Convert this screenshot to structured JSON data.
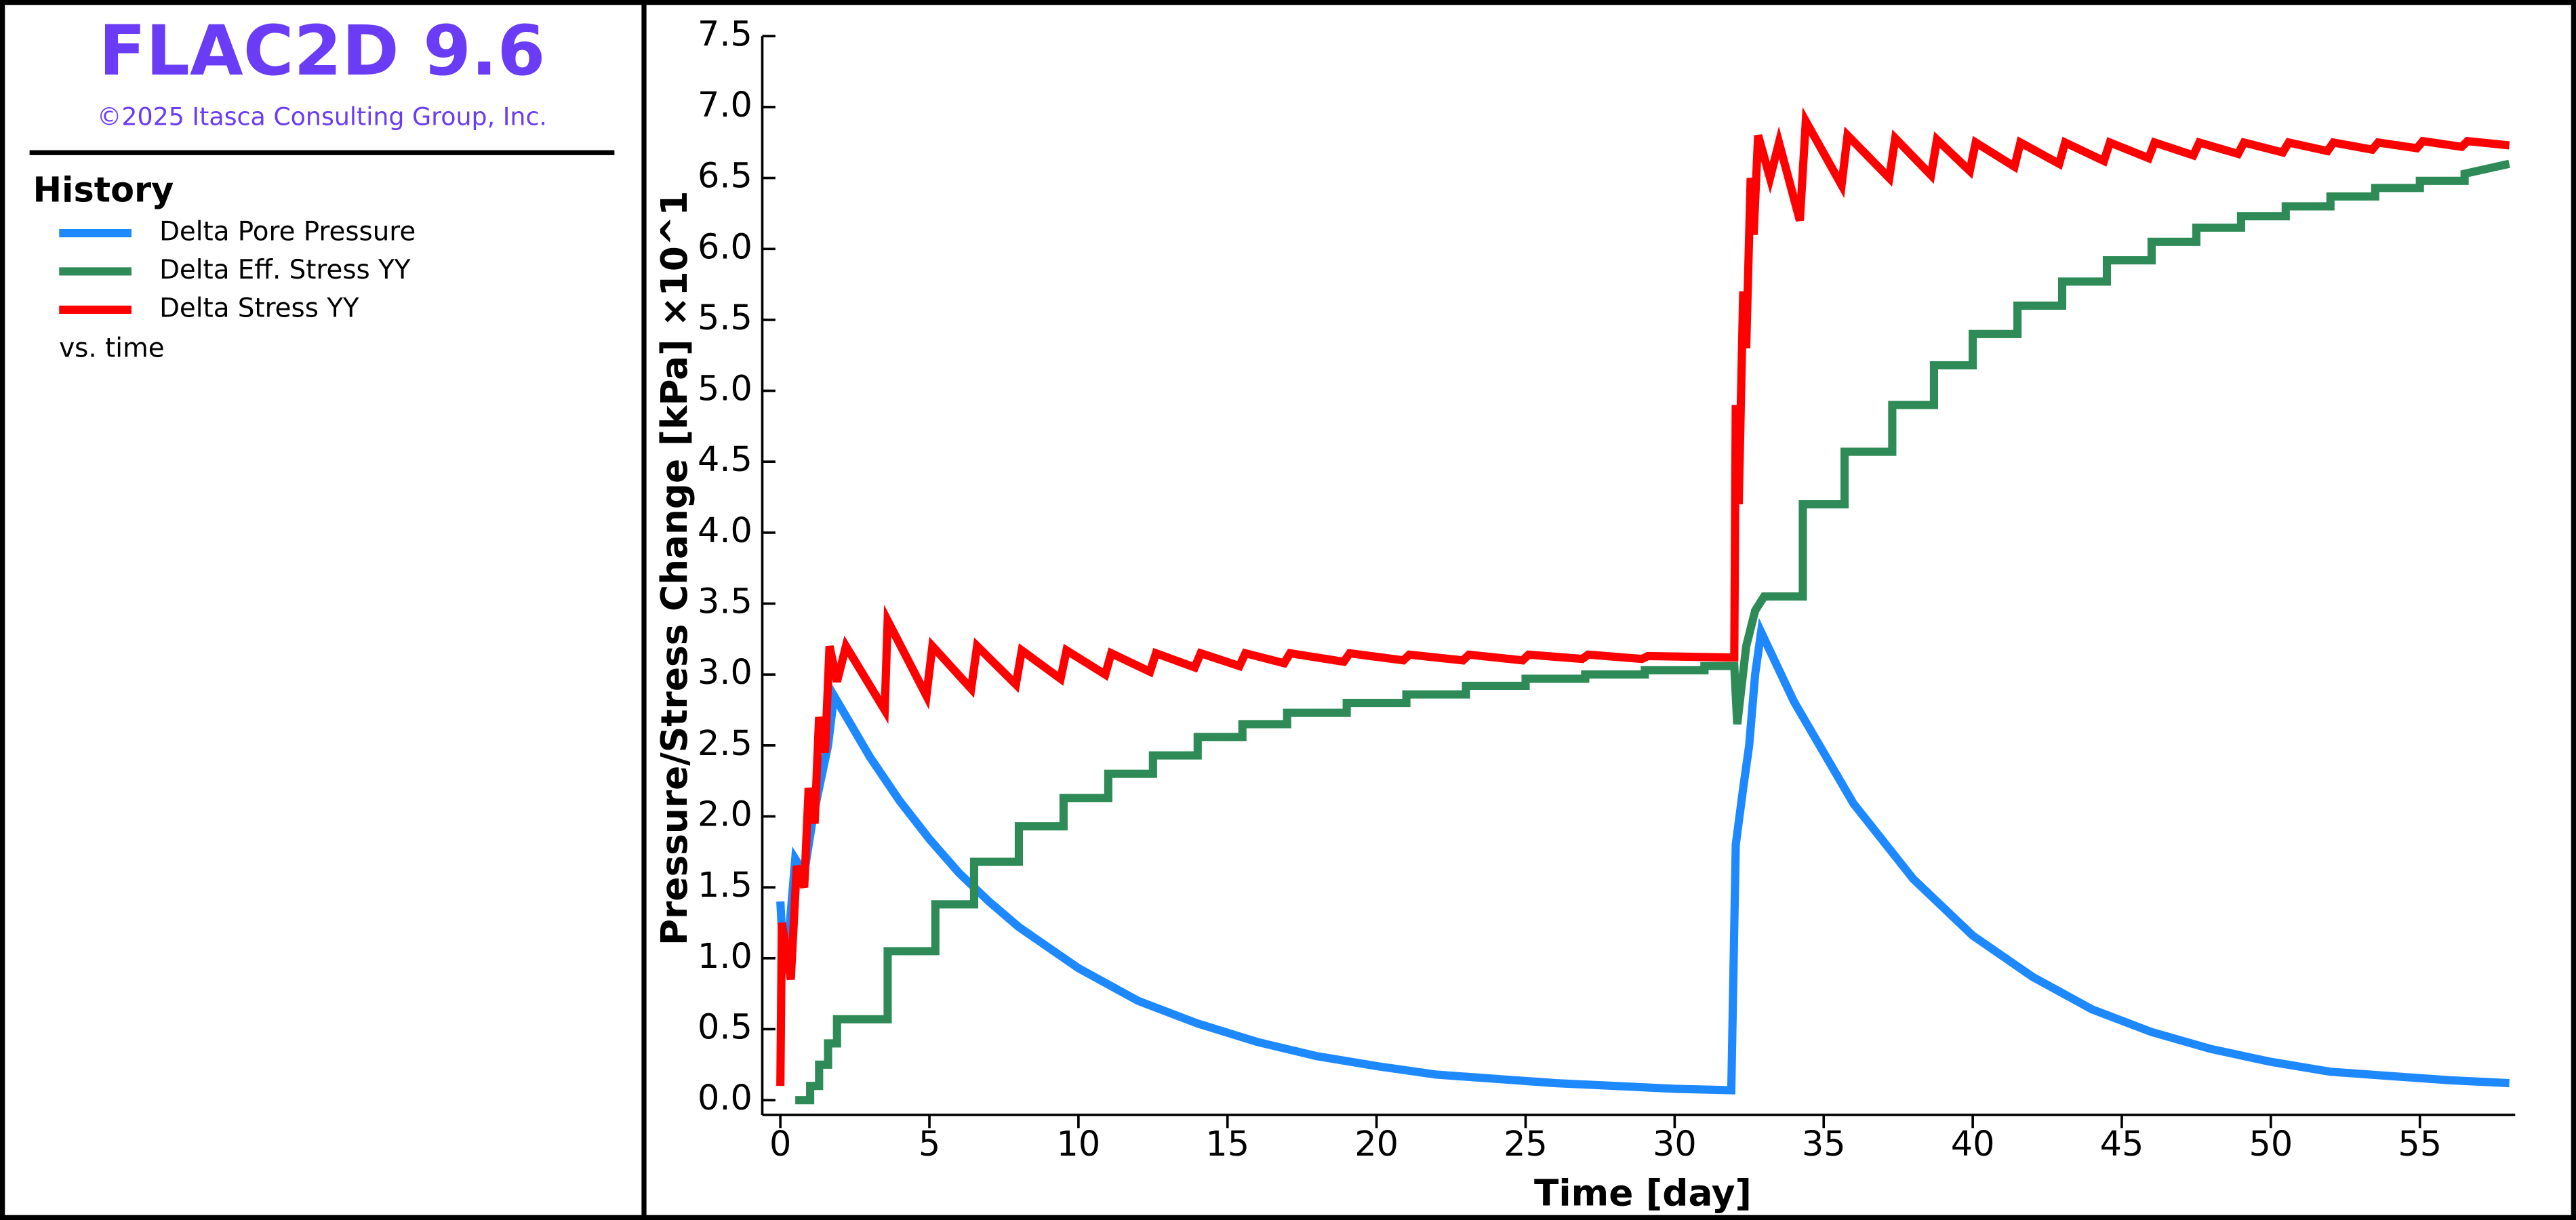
{
  "chart_data": {
    "type": "line",
    "title": "FLAC2D 9.6",
    "subtitle": "©2025 Itasca Consulting Group, Inc.",
    "legend_title": "History",
    "legend_note": "vs. time",
    "x_label": "Time [day]",
    "y_label": "Pressure/Stress Change [kPa] ×10^1",
    "xlim": [
      0,
      58.2
    ],
    "ylim": [
      0,
      7.5
    ],
    "xticks": [
      0,
      5,
      10,
      15,
      20,
      25,
      30,
      35,
      40,
      45,
      50,
      55
    ],
    "yticks": [
      {
        "value": 0,
        "label": "0.0"
      },
      0.5,
      {
        "value": 1,
        "label": "1.0"
      },
      1.5,
      {
        "value": 2,
        "label": "2.0"
      },
      2.5,
      {
        "value": 3,
        "label": "3.0"
      },
      3.5,
      {
        "value": 4,
        "label": "4.0"
      },
      4.5,
      {
        "value": 5,
        "label": "5.0"
      },
      5.5,
      {
        "value": 6,
        "label": "6.0"
      },
      6.5,
      {
        "value": 7,
        "label": "7.0"
      },
      7.5
    ],
    "grid": false,
    "series": [
      {
        "name": "Delta Pore Pressure",
        "color": "#1e88ff",
        "x": [
          0,
          0.1,
          0.3,
          0.5,
          0.8,
          1.1,
          1.4,
          1.6,
          1.8,
          3,
          4,
          5,
          6,
          7,
          8,
          10,
          12,
          14,
          16,
          18,
          20,
          22,
          24,
          26,
          28,
          30,
          31.9,
          32.05,
          32.3,
          32.5,
          32.7,
          32.9,
          34,
          36,
          38,
          40,
          42,
          44,
          46,
          48,
          50,
          52,
          54,
          56,
          58
        ],
        "values": [
          1.4,
          1.0,
          1.2,
          1.7,
          1.6,
          2.0,
          2.3,
          2.5,
          2.85,
          2.42,
          2.11,
          1.84,
          1.6,
          1.4,
          1.22,
          0.93,
          0.7,
          0.54,
          0.41,
          0.31,
          0.24,
          0.18,
          0.15,
          0.12,
          0.1,
          0.08,
          0.07,
          1.8,
          2.2,
          2.5,
          3.0,
          3.3,
          2.81,
          2.09,
          1.56,
          1.16,
          0.87,
          0.64,
          0.48,
          0.36,
          0.27,
          0.2,
          0.17,
          0.14,
          0.12
        ]
      },
      {
        "name": "Delta Eff. Stress YY",
        "color": "#2e8b57",
        "x": [
          0.5,
          1.0,
          1.0,
          1.3,
          1.3,
          1.6,
          1.6,
          1.9,
          1.9,
          3.6,
          3.6,
          5.2,
          5.2,
          6.5,
          6.5,
          8,
          8,
          9.5,
          9.5,
          11,
          11,
          12.5,
          12.5,
          14,
          14,
          15.5,
          15.5,
          17,
          17,
          19,
          19,
          21,
          21,
          23,
          23,
          25,
          25,
          27,
          27,
          29,
          29,
          31,
          31,
          32.0,
          32.1,
          32.4,
          32.7,
          33.0,
          34.3,
          34.3,
          35.7,
          35.7,
          37.3,
          37.3,
          38.7,
          38.7,
          40,
          40,
          41.5,
          41.5,
          43,
          43,
          44.5,
          44.5,
          46,
          46,
          47.5,
          47.5,
          49,
          49,
          50.5,
          50.5,
          52,
          52,
          53.5,
          53.5,
          55,
          55,
          56.5,
          56.5,
          58
        ],
        "values": [
          0,
          0,
          0.1,
          0.1,
          0.25,
          0.25,
          0.4,
          0.4,
          0.57,
          0.57,
          1.05,
          1.05,
          1.38,
          1.38,
          1.68,
          1.68,
          1.93,
          1.93,
          2.13,
          2.13,
          2.3,
          2.3,
          2.43,
          2.43,
          2.56,
          2.56,
          2.65,
          2.65,
          2.73,
          2.73,
          2.8,
          2.8,
          2.86,
          2.86,
          2.92,
          2.92,
          2.97,
          2.97,
          3.0,
          3.0,
          3.03,
          3.03,
          3.06,
          3.06,
          2.65,
          3.2,
          3.45,
          3.55,
          3.55,
          4.2,
          4.2,
          4.57,
          4.57,
          4.9,
          4.9,
          5.18,
          5.18,
          5.4,
          5.4,
          5.6,
          5.6,
          5.77,
          5.77,
          5.92,
          5.92,
          6.05,
          6.05,
          6.15,
          6.15,
          6.23,
          6.23,
          6.3,
          6.3,
          6.37,
          6.37,
          6.43,
          6.43,
          6.48,
          6.48,
          6.53,
          6.6
        ]
      },
      {
        "name": "Delta Stress YY",
        "color": "#ff0000",
        "x": [
          0,
          0.05,
          0.35,
          0.55,
          0.8,
          0.95,
          1.15,
          1.3,
          1.5,
          1.65,
          1.9,
          2.2,
          3.5,
          3.6,
          4.9,
          5.1,
          6.4,
          6.6,
          7.9,
          8.1,
          9.4,
          9.6,
          10.9,
          11.1,
          12.4,
          12.6,
          13.9,
          14.1,
          15.4,
          15.6,
          16.9,
          17.1,
          18.9,
          19.1,
          20.9,
          21.1,
          22.9,
          23.1,
          24.9,
          25.1,
          26.9,
          27.1,
          28.9,
          29.1,
          31.9,
          32.0,
          32.05,
          32.15,
          32.3,
          32.4,
          32.55,
          32.65,
          32.8,
          33.2,
          33.5,
          34.2,
          34.4,
          35.6,
          35.8,
          37.2,
          37.4,
          38.6,
          38.8,
          39.9,
          40.1,
          41.4,
          41.6,
          42.9,
          43.1,
          44.4,
          44.6,
          45.9,
          46.1,
          47.4,
          47.6,
          48.9,
          49.1,
          50.4,
          50.6,
          51.9,
          52.1,
          53.4,
          53.6,
          54.9,
          55.1,
          56.4,
          56.6,
          58
        ],
        "values": [
          0.1,
          1.25,
          0.85,
          1.65,
          1.5,
          2.2,
          1.95,
          2.7,
          2.45,
          3.2,
          2.95,
          3.2,
          2.75,
          3.38,
          2.85,
          3.2,
          2.9,
          3.2,
          2.93,
          3.17,
          2.97,
          3.17,
          3.0,
          3.15,
          3.02,
          3.15,
          3.05,
          3.15,
          3.06,
          3.15,
          3.08,
          3.15,
          3.09,
          3.15,
          3.1,
          3.14,
          3.1,
          3.14,
          3.1,
          3.14,
          3.11,
          3.14,
          3.11,
          3.13,
          3.12,
          3.12,
          4.9,
          4.2,
          5.7,
          5.3,
          6.5,
          6.1,
          6.8,
          6.5,
          6.75,
          6.2,
          6.9,
          6.45,
          6.8,
          6.5,
          6.78,
          6.52,
          6.77,
          6.55,
          6.75,
          6.58,
          6.75,
          6.6,
          6.75,
          6.62,
          6.75,
          6.64,
          6.75,
          6.66,
          6.75,
          6.67,
          6.75,
          6.68,
          6.75,
          6.69,
          6.75,
          6.7,
          6.75,
          6.71,
          6.76,
          6.72,
          6.76,
          6.73
        ]
      }
    ]
  }
}
